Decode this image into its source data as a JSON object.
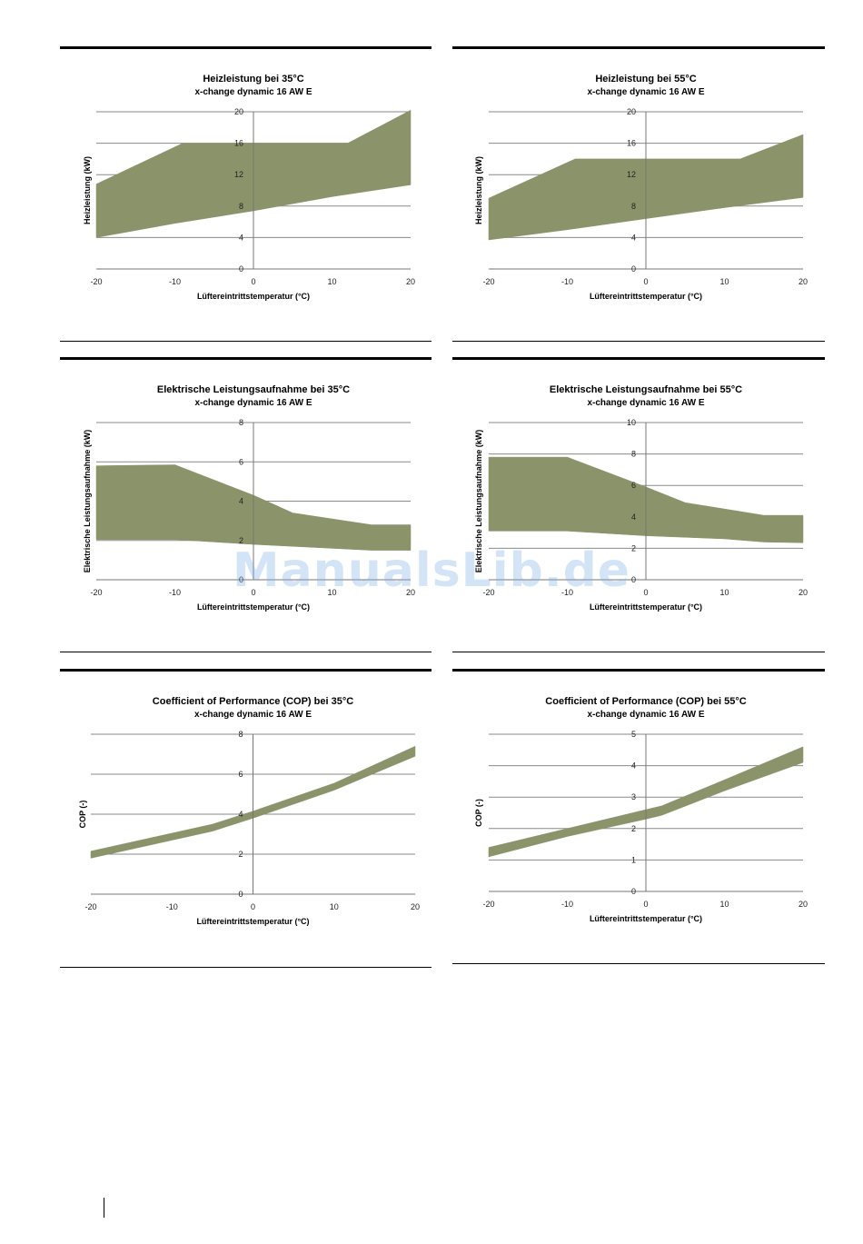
{
  "colors": {
    "band": "#8b936a",
    "grid": "#8a8a8a",
    "axis": "#777777",
    "rule": "#000000"
  },
  "watermark": "ManualsLib.de",
  "chart_data": [
    {
      "type": "area",
      "title": "Heizleistung bei 35°C",
      "subtitle": "x-change dynamic 16 AW E",
      "xlabel": "Lüftereintrittstemperatur (°C)",
      "ylabel": "Heizleistung (kW)",
      "xlim": [
        -20,
        20
      ],
      "ylim": [
        0,
        20
      ],
      "xticks": [
        -20,
        -10,
        0,
        10,
        20
      ],
      "yticks": [
        0,
        4,
        8,
        12,
        16,
        20
      ],
      "grid": "horizontal",
      "series": [
        {
          "upper": [
            [
              -20,
              10.8
            ],
            [
              -9,
              16.0
            ],
            [
              12,
              16.0
            ],
            [
              20,
              20.2
            ]
          ],
          "lower": [
            [
              -20,
              4.0
            ],
            [
              -10,
              5.8
            ],
            [
              0,
              7.4
            ],
            [
              10,
              9.2
            ],
            [
              20,
              10.7
            ]
          ]
        }
      ]
    },
    {
      "type": "area",
      "title": "Heizleistung bei 55°C",
      "subtitle": "x-change dynamic 16 AW E",
      "xlabel": "Lüftereintrittstemperatur (°C)",
      "ylabel": "Heizleistung (kW)",
      "xlim": [
        -20,
        20
      ],
      "ylim": [
        0,
        20
      ],
      "xticks": [
        -20,
        -10,
        0,
        10,
        20
      ],
      "yticks": [
        0,
        4,
        8,
        12,
        16,
        20
      ],
      "grid": "horizontal",
      "series": [
        {
          "upper": [
            [
              -20,
              9.0
            ],
            [
              -9,
              14.0
            ],
            [
              12,
              14.0
            ],
            [
              20,
              17.1
            ]
          ],
          "lower": [
            [
              -20,
              3.7
            ],
            [
              -10,
              5.0
            ],
            [
              0,
              6.4
            ],
            [
              10,
              7.8
            ],
            [
              20,
              9.1
            ]
          ]
        }
      ]
    },
    {
      "type": "area",
      "title": "Elektrische Leistungsaufnahme bei 35°C",
      "subtitle": "x-change dynamic 16 AW E",
      "xlabel": "Lüftereintrittstemperatur (°C)",
      "ylabel": "Elektrische Leistungsaufnahme (kW)",
      "xlim": [
        -20,
        20
      ],
      "ylim": [
        0,
        8
      ],
      "xticks": [
        -20,
        -10,
        0,
        10,
        20
      ],
      "yticks": [
        0,
        2,
        4,
        6,
        8
      ],
      "grid": "horizontal",
      "series": [
        {
          "upper": [
            [
              -20,
              5.8
            ],
            [
              -10,
              5.85
            ],
            [
              0,
              4.3
            ],
            [
              5,
              3.4
            ],
            [
              10,
              3.1
            ],
            [
              15,
              2.8
            ],
            [
              20,
              2.8
            ]
          ],
          "lower": [
            [
              -20,
              2.05
            ],
            [
              -10,
              2.05
            ],
            [
              0,
              1.8
            ],
            [
              10,
              1.6
            ],
            [
              15,
              1.5
            ],
            [
              20,
              1.5
            ]
          ]
        }
      ]
    },
    {
      "type": "area",
      "title": "Elektrische Leistungsaufnahme bei 55°C",
      "subtitle": "x-change dynamic 16 AW E",
      "xlabel": "Lüftereintrittstemperatur (°C)",
      "ylabel": "Elektrische Leistungsaufnahme (kW)",
      "xlim": [
        -20,
        20
      ],
      "ylim": [
        0,
        10
      ],
      "xticks": [
        -20,
        -10,
        0,
        10,
        20
      ],
      "yticks": [
        0,
        2,
        4,
        6,
        8,
        10
      ],
      "grid": "horizontal",
      "series": [
        {
          "upper": [
            [
              -20,
              7.8
            ],
            [
              -10,
              7.8
            ],
            [
              0,
              5.9
            ],
            [
              5,
              4.9
            ],
            [
              10,
              4.5
            ],
            [
              15,
              4.1
            ],
            [
              20,
              4.1
            ]
          ],
          "lower": [
            [
              -20,
              3.1
            ],
            [
              -10,
              3.1
            ],
            [
              0,
              2.8
            ],
            [
              10,
              2.6
            ],
            [
              15,
              2.4
            ],
            [
              20,
              2.35
            ]
          ]
        }
      ]
    },
    {
      "type": "area",
      "title": "Coefficient of Performance (COP) bei 35°C",
      "subtitle": "x-change dynamic 16 AW E",
      "xlabel": "Lüftereintrittstemperatur (°C)",
      "ylabel": "COP (-)",
      "xlim": [
        -20,
        20
      ],
      "ylim": [
        0,
        8
      ],
      "xticks": [
        -20,
        -10,
        0,
        10,
        20
      ],
      "yticks": [
        0,
        2,
        4,
        6,
        8
      ],
      "grid": "horizontal",
      "series": [
        {
          "upper": [
            [
              -20,
              2.15
            ],
            [
              -10,
              3.05
            ],
            [
              -5,
              3.5
            ],
            [
              0,
              4.15
            ],
            [
              10,
              5.55
            ],
            [
              20,
              7.4
            ]
          ],
          "lower": [
            [
              -20,
              1.8
            ],
            [
              -10,
              2.7
            ],
            [
              -5,
              3.15
            ],
            [
              0,
              3.8
            ],
            [
              10,
              5.2
            ],
            [
              20,
              6.9
            ]
          ]
        }
      ]
    },
    {
      "type": "area",
      "title": "Coefficient of Performance (COP) bei 55°C",
      "subtitle": "x-change dynamic 16 AW E",
      "xlabel": "Lüftereintrittstemperatur (°C)",
      "ylabel": "COP (-)",
      "xlim": [
        -20,
        20
      ],
      "ylim": [
        0,
        5
      ],
      "xticks": [
        -20,
        -10,
        0,
        10,
        20
      ],
      "yticks": [
        0,
        1,
        2,
        3,
        4,
        5
      ],
      "grid": "horizontal",
      "series": [
        {
          "upper": [
            [
              -20,
              1.4
            ],
            [
              -10,
              2.0
            ],
            [
              0,
              2.6
            ],
            [
              2,
              2.72
            ],
            [
              10,
              3.55
            ],
            [
              20,
              4.6
            ]
          ],
          "lower": [
            [
              -20,
              1.1
            ],
            [
              -10,
              1.75
            ],
            [
              0,
              2.3
            ],
            [
              2,
              2.42
            ],
            [
              10,
              3.2
            ],
            [
              20,
              4.1
            ]
          ]
        }
      ]
    }
  ]
}
